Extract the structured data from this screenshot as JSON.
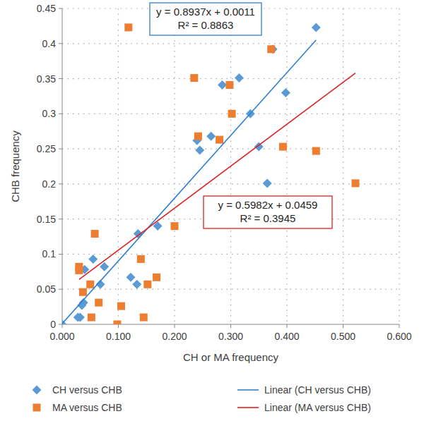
{
  "chart_data": {
    "type": "scatter",
    "x_label": "CH or MA frequency",
    "y_label": "CHB frequency",
    "xlim": [
      0,
      0.6
    ],
    "ylim": [
      0,
      0.45
    ],
    "xticks": [
      {
        "value": 0,
        "label": "0.000"
      },
      {
        "value": 0.1,
        "label": "0.100"
      },
      {
        "value": 0.2,
        "label": "0.200"
      },
      {
        "value": 0.3,
        "label": "0.300"
      },
      {
        "value": 0.4,
        "label": "0.400"
      },
      {
        "value": 0.5,
        "label": "0.500"
      },
      {
        "value": 0.6,
        "label": "0.600"
      }
    ],
    "yticks": [
      0,
      0.05,
      0.1,
      0.15,
      0.2,
      0.25,
      0.3,
      0.35,
      0.4,
      0.45
    ],
    "grid": true,
    "legend": "bottom",
    "series": [
      {
        "name": "CH versus CHB",
        "type": "scatter",
        "marker": "diamond",
        "color": "#5b9bd5",
        "x": [
          0.0,
          0.028,
          0.032,
          0.035,
          0.038,
          0.04,
          0.055,
          0.068,
          0.075,
          0.122,
          0.133,
          0.135,
          0.17,
          0.24,
          0.245,
          0.265,
          0.285,
          0.315,
          0.335,
          0.35,
          0.365,
          0.375,
          0.398,
          0.452
        ],
        "values": [
          0.0,
          0.01,
          0.01,
          0.027,
          0.031,
          0.078,
          0.093,
          0.057,
          0.082,
          0.067,
          0.057,
          0.129,
          0.14,
          0.262,
          0.248,
          0.268,
          0.341,
          0.351,
          0.3,
          0.253,
          0.201,
          0.392,
          0.33,
          0.423
        ]
      },
      {
        "name": "MA versus CHB",
        "type": "scatter",
        "marker": "square",
        "color": "#ed7d31",
        "x": [
          0.03,
          0.03,
          0.037,
          0.05,
          0.052,
          0.058,
          0.065,
          0.098,
          0.105,
          0.118,
          0.14,
          0.145,
          0.152,
          0.168,
          0.2,
          0.235,
          0.242,
          0.28,
          0.298,
          0.302,
          0.372,
          0.393,
          0.452,
          0.522
        ],
        "values": [
          0.082,
          0.077,
          0.046,
          0.057,
          0.01,
          0.129,
          0.031,
          0.0,
          0.026,
          0.423,
          0.093,
          0.01,
          0.057,
          0.067,
          0.14,
          0.351,
          0.268,
          0.263,
          0.341,
          0.3,
          0.392,
          0.253,
          0.247,
          0.201
        ]
      },
      {
        "name": "Linear (CH versus CHB)",
        "type": "line",
        "line_style": "solid",
        "color": "#2f7fd0",
        "x": [
          0.0,
          0.452
        ],
        "values": [
          0.001,
          0.405
        ]
      },
      {
        "name": "Linear (MA versus CHB)",
        "type": "line",
        "line_style": "solid",
        "color": "#e02020",
        "x": [
          0.03,
          0.522
        ],
        "values": [
          0.064,
          0.358
        ]
      }
    ],
    "annotations": [
      {
        "lines": [
          "y = 0.8937x + 0.0011",
          "R² = 0.8863"
        ],
        "color": "#2f7fd0"
      },
      {
        "lines": [
          "y = 0.5982x + 0.0459",
          "R² = 0.3945"
        ],
        "color": "#e02020"
      }
    ]
  }
}
